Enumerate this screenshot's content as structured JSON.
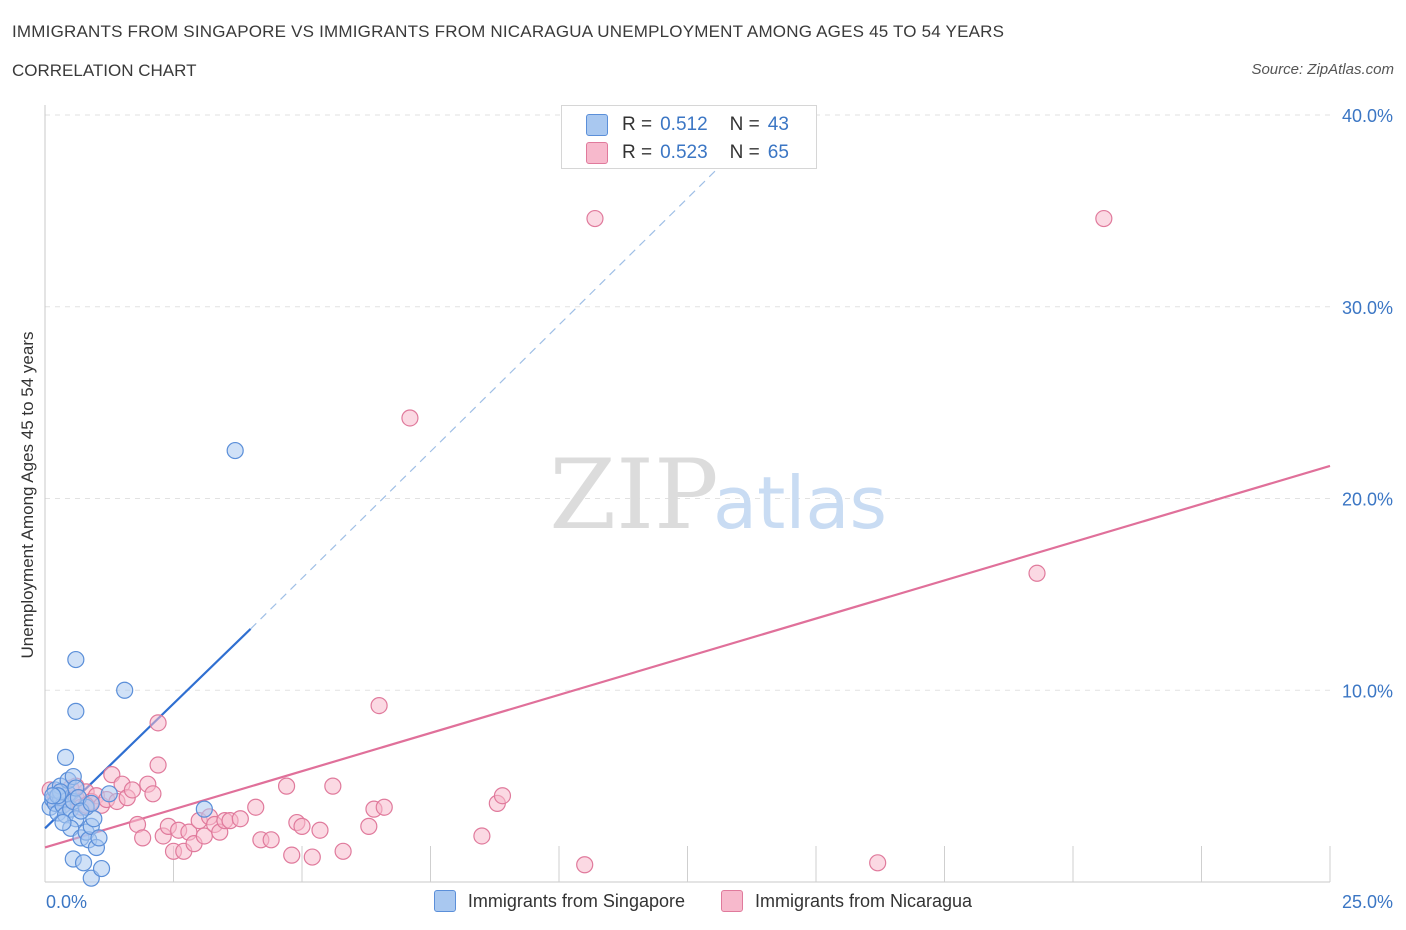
{
  "header": {
    "title": "IMMIGRANTS FROM SINGAPORE VS IMMIGRANTS FROM NICARAGUA UNEMPLOYMENT AMONG AGES 45 TO 54 YEARS",
    "subtitle": "CORRELATION CHART",
    "source": "Source: ZipAtlas.com"
  },
  "watermark": {
    "zip": "ZIP",
    "atlas": "atlas"
  },
  "legend": {
    "r_label": "R =",
    "n_label": "N =",
    "singapore": {
      "r": "0.512",
      "n": "43",
      "name": "Immigrants from Singapore"
    },
    "nicaragua": {
      "r": "0.523",
      "n": "65",
      "name": "Immigrants from Nicaragua"
    }
  },
  "colors": {
    "singapore_fill": "#a9c8f0",
    "singapore_stroke": "#5b8fd9",
    "singapore_line": "#2f6fd1",
    "nicaragua_fill": "#f7b9cc",
    "nicaragua_stroke": "#e07a9c",
    "nicaragua_line": "#e0709a",
    "tick_text": "#3b76c4"
  },
  "chart_data": {
    "type": "scatter",
    "title": "IMMIGRANTS FROM SINGAPORE VS IMMIGRANTS FROM NICARAGUA UNEMPLOYMENT AMONG AGES 45 TO 54 YEARS",
    "xlabel": "",
    "ylabel": "Unemployment Among Ages 45 to 54 years",
    "xlim": [
      0,
      25
    ],
    "ylim": [
      0,
      40
    ],
    "x_tick_labels": [
      "0.0%",
      "25.0%"
    ],
    "y_ticks": [
      10,
      20,
      30,
      40
    ],
    "y_tick_labels": [
      "10.0%",
      "20.0%",
      "30.0%",
      "40.0%"
    ],
    "grid": true,
    "legend_position": "top-center",
    "series": [
      {
        "name": "Immigrants from Singapore",
        "points": [
          [
            0.1,
            3.9
          ],
          [
            0.15,
            4.3
          ],
          [
            0.2,
            4.1
          ],
          [
            0.25,
            3.6
          ],
          [
            0.3,
            4.4
          ],
          [
            0.35,
            4.0
          ],
          [
            0.4,
            3.5
          ],
          [
            0.45,
            4.6
          ],
          [
            0.5,
            3.8
          ],
          [
            0.55,
            4.2
          ],
          [
            0.6,
            3.3
          ],
          [
            0.2,
            4.8
          ],
          [
            0.3,
            5.0
          ],
          [
            0.4,
            6.5
          ],
          [
            0.45,
            5.3
          ],
          [
            0.55,
            5.5
          ],
          [
            0.6,
            4.9
          ],
          [
            0.5,
            2.8
          ],
          [
            0.7,
            2.3
          ],
          [
            0.8,
            2.6
          ],
          [
            0.85,
            2.2
          ],
          [
            0.9,
            2.9
          ],
          [
            0.95,
            3.3
          ],
          [
            1.0,
            1.8
          ],
          [
            1.05,
            2.3
          ],
          [
            0.55,
            1.2
          ],
          [
            0.75,
            1.0
          ],
          [
            0.9,
            0.2
          ],
          [
            1.1,
            0.7
          ],
          [
            0.6,
            8.9
          ],
          [
            0.6,
            11.6
          ],
          [
            1.55,
            10.0
          ],
          [
            3.7,
            22.5
          ],
          [
            3.1,
            3.8
          ],
          [
            1.25,
            4.6
          ],
          [
            0.8,
            3.9
          ],
          [
            0.3,
            4.7
          ],
          [
            0.65,
            4.4
          ],
          [
            0.35,
            3.1
          ],
          [
            0.25,
            4.5
          ],
          [
            0.15,
            4.5
          ],
          [
            0.7,
            3.7
          ],
          [
            0.9,
            4.1
          ]
        ],
        "trend": {
          "x": [
            0,
            4.0
          ],
          "y": [
            2.8,
            13.2
          ]
        },
        "trend_extension": {
          "x": [
            4.0,
            13.5
          ],
          "y": [
            13.2,
            38.3
          ]
        }
      },
      {
        "name": "Immigrants from Nicaragua",
        "points": [
          [
            0.1,
            4.8
          ],
          [
            0.2,
            4.3
          ],
          [
            0.3,
            4.6
          ],
          [
            0.4,
            4.1
          ],
          [
            0.5,
            4.9
          ],
          [
            0.6,
            4.4
          ],
          [
            0.7,
            3.9
          ],
          [
            0.8,
            4.7
          ],
          [
            0.9,
            4.2
          ],
          [
            1.0,
            4.5
          ],
          [
            1.1,
            4.0
          ],
          [
            1.2,
            4.3
          ],
          [
            1.3,
            5.6
          ],
          [
            1.4,
            4.2
          ],
          [
            1.5,
            5.1
          ],
          [
            1.6,
            4.4
          ],
          [
            1.7,
            4.8
          ],
          [
            1.8,
            3.0
          ],
          [
            1.9,
            2.3
          ],
          [
            2.0,
            5.1
          ],
          [
            2.1,
            4.6
          ],
          [
            2.2,
            6.1
          ],
          [
            2.3,
            2.4
          ],
          [
            2.4,
            2.9
          ],
          [
            2.5,
            1.6
          ],
          [
            2.6,
            2.7
          ],
          [
            2.7,
            1.6
          ],
          [
            2.8,
            2.6
          ],
          [
            2.9,
            2.0
          ],
          [
            3.0,
            3.2
          ],
          [
            3.1,
            2.4
          ],
          [
            3.2,
            3.4
          ],
          [
            3.3,
            3.0
          ],
          [
            3.4,
            2.6
          ],
          [
            3.5,
            3.2
          ],
          [
            3.6,
            3.2
          ],
          [
            3.8,
            3.3
          ],
          [
            4.1,
            3.9
          ],
          [
            4.2,
            2.2
          ],
          [
            4.4,
            2.2
          ],
          [
            4.7,
            5.0
          ],
          [
            4.8,
            1.4
          ],
          [
            4.9,
            3.1
          ],
          [
            5.0,
            2.9
          ],
          [
            5.2,
            1.3
          ],
          [
            5.35,
            2.7
          ],
          [
            5.6,
            5.0
          ],
          [
            5.8,
            1.6
          ],
          [
            6.3,
            2.9
          ],
          [
            6.4,
            3.8
          ],
          [
            6.5,
            9.2
          ],
          [
            6.6,
            3.9
          ],
          [
            2.2,
            8.3
          ],
          [
            7.1,
            24.2
          ],
          [
            8.5,
            2.4
          ],
          [
            8.8,
            4.1
          ],
          [
            8.9,
            4.5
          ],
          [
            10.5,
            0.9
          ],
          [
            10.7,
            34.6
          ],
          [
            16.2,
            1.0
          ],
          [
            19.3,
            16.1
          ],
          [
            20.6,
            34.6
          ],
          [
            0.3,
            4.4
          ],
          [
            0.6,
            5.0
          ],
          [
            0.8,
            4.0
          ]
        ],
        "trend": {
          "x": [
            0,
            25
          ],
          "y": [
            1.8,
            21.7
          ]
        }
      }
    ]
  }
}
